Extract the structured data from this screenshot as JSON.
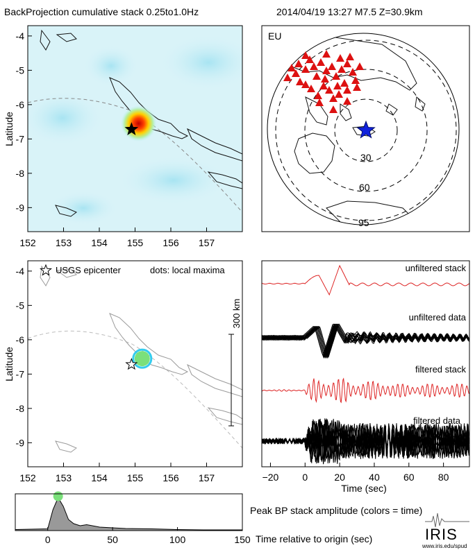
{
  "header": {
    "title": "BackProjection cumulative stack 0.25to1.0Hz",
    "event": "2014/04/19 13:27   M7.5   Z=30.9km"
  },
  "map_panel": {
    "ylabel": "Latitude",
    "lat_ticks": [
      "-4",
      "-5",
      "-6",
      "-7",
      "-8",
      "-9"
    ],
    "lon_ticks": [
      "152",
      "153",
      "154",
      "155",
      "156",
      "157"
    ],
    "epicenter": {
      "lon": 154.9,
      "lat": -6.72
    },
    "hotspot": {
      "lon": 155.1,
      "lat": -6.55
    },
    "colors": {
      "background": "#d9f3f8",
      "hot": "#d01010",
      "warm": "#ffd000",
      "cool": "#7fd6ea"
    }
  },
  "maxima_panel": {
    "ylabel": "Latitude",
    "legend_epicenter": "USGS epicenter",
    "legend_dots": "dots: local maxima",
    "scale_label": "300 km",
    "lat_ticks": [
      "-4",
      "-5",
      "-6",
      "-7",
      "-8",
      "-9"
    ],
    "lon_ticks": [
      "152",
      "153",
      "154",
      "155",
      "156",
      "157"
    ],
    "maximum": {
      "lon": 155.2,
      "lat": -6.55,
      "color": "#7be07b",
      "ring": "#33ccee"
    }
  },
  "globe": {
    "array_label": "EU",
    "distance_labels": [
      "30",
      "60",
      "95"
    ],
    "station_color": "#dd1111",
    "source_color": "#1122dd"
  },
  "traces": {
    "labels": [
      "unfiltered stack",
      "unfiltered data",
      "filtered stack",
      "filtered data"
    ],
    "xlabel": "Time (sec)",
    "x_ticks": [
      "−20",
      "0",
      "20",
      "40",
      "60",
      "80"
    ],
    "stack_color": "#dd2222",
    "data_color": "#000000"
  },
  "peak_panel": {
    "label": "Peak BP stack amplitude (colors = time)",
    "xlabel": "Time relative to origin (sec)",
    "x_ticks": [
      "0",
      "50",
      "100",
      "150"
    ],
    "fill_color": "#999999",
    "peak_dot_color": "#7be07b"
  },
  "branding": {
    "logo": "IRIS",
    "url": "www.iris.edu/spud"
  },
  "chart_data": [
    {
      "type": "heatmap",
      "title": "",
      "ylabel": "Latitude",
      "xlim": [
        152,
        158
      ],
      "ylim": [
        -9.7,
        -3.7
      ],
      "peak": {
        "lon": 155.1,
        "lat": -6.55
      }
    },
    {
      "type": "scatter",
      "ylabel": "Latitude",
      "xlim": [
        152,
        158
      ],
      "ylim": [
        -9.7,
        -3.7
      ],
      "series": [
        {
          "name": "USGS epicenter",
          "x": [
            154.9
          ],
          "y": [
            -6.72
          ]
        },
        {
          "name": "dots: local maxima",
          "x": [
            155.2
          ],
          "y": [
            -6.55
          ]
        }
      ]
    },
    {
      "type": "line",
      "xlabel": "Time (sec)",
      "xlim": [
        -25,
        95
      ],
      "series": [
        {
          "name": "unfiltered stack",
          "x": [
            -25,
            0,
            5,
            8,
            12,
            16,
            20,
            23,
            30,
            40,
            60,
            95
          ],
          "y": [
            0,
            0,
            0.6,
            1.0,
            -1.0,
            -0.4,
            0.8,
            1.0,
            0.1,
            0.2,
            0.1,
            0
          ]
        },
        {
          "name": "unfiltered data",
          "x": [
            -25,
            0,
            6,
            10,
            13,
            20,
            25,
            35,
            60,
            95
          ],
          "y": [
            0,
            0.1,
            0.8,
            1.0,
            -1.0,
            0.9,
            0.5,
            0.2,
            0.15,
            0.1
          ]
        },
        {
          "name": "filtered stack",
          "x": [
            -25,
            0,
            10,
            25,
            50,
            95
          ],
          "y": [
            0,
            0.1,
            1.0,
            0.8,
            0.6,
            0.4
          ]
        },
        {
          "name": "filtered data",
          "x": [
            -25,
            0,
            5,
            20,
            50,
            95
          ],
          "y": [
            0.1,
            0.2,
            1.0,
            0.8,
            0.7,
            0.6
          ]
        }
      ]
    },
    {
      "type": "area",
      "xlabel": "Time relative to origin (sec)",
      "xlim": [
        -25,
        150
      ],
      "ylim": [
        0,
        1
      ],
      "x": [
        -25,
        0,
        4,
        8,
        12,
        16,
        20,
        25,
        30,
        40,
        50,
        60,
        80,
        100,
        120,
        150
      ],
      "values": [
        0.03,
        0.05,
        0.6,
        0.95,
        0.7,
        0.32,
        0.2,
        0.14,
        0.17,
        0.1,
        0.08,
        0.06,
        0.05,
        0.03,
        0.02,
        0.02
      ],
      "peak": {
        "x": 8,
        "y": 0.95
      }
    }
  ]
}
